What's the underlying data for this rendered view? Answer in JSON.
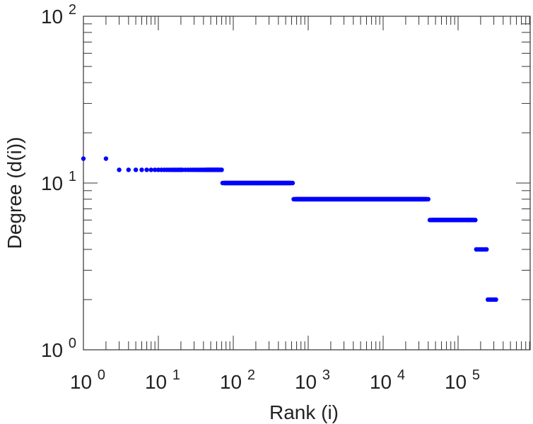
{
  "chart_data": {
    "type": "scatter",
    "title": "",
    "xlabel": "Rank (i)",
    "ylabel": "Degree (d(i))",
    "xscale": "log",
    "yscale": "log",
    "xlim": [
      1,
      800000
    ],
    "ylim": [
      1,
      100
    ],
    "grid": false,
    "marker_color": "#0000ff",
    "x_tick_labels": [
      {
        "value": 1,
        "base": "10",
        "exp": "0"
      },
      {
        "value": 10,
        "base": "10",
        "exp": "1"
      },
      {
        "value": 100,
        "base": "10",
        "exp": "2"
      },
      {
        "value": 1000,
        "base": "10",
        "exp": "3"
      },
      {
        "value": 10000,
        "base": "10",
        "exp": "4"
      },
      {
        "value": 100000,
        "base": "10",
        "exp": "5"
      }
    ],
    "y_tick_labels": [
      {
        "value": 1,
        "base": "10",
        "exp": "0"
      },
      {
        "value": 10,
        "base": "10",
        "exp": "1"
      },
      {
        "value": 100,
        "base": "10",
        "exp": "2"
      }
    ],
    "points": [
      {
        "x": 1,
        "y": 14
      },
      {
        "x": 2,
        "y": 14
      }
    ],
    "runs": [
      {
        "x_start": 3,
        "x_end": 70,
        "y": 12
      },
      {
        "x_start": 72,
        "x_end": 620,
        "y": 10
      },
      {
        "x_start": 640,
        "x_end": 40000,
        "y": 8
      },
      {
        "x_start": 42000,
        "x_end": 170000,
        "y": 6
      },
      {
        "x_start": 175000,
        "x_end": 240000,
        "y": 4
      },
      {
        "x_start": 250000,
        "x_end": 320000,
        "y": 2
      }
    ]
  }
}
